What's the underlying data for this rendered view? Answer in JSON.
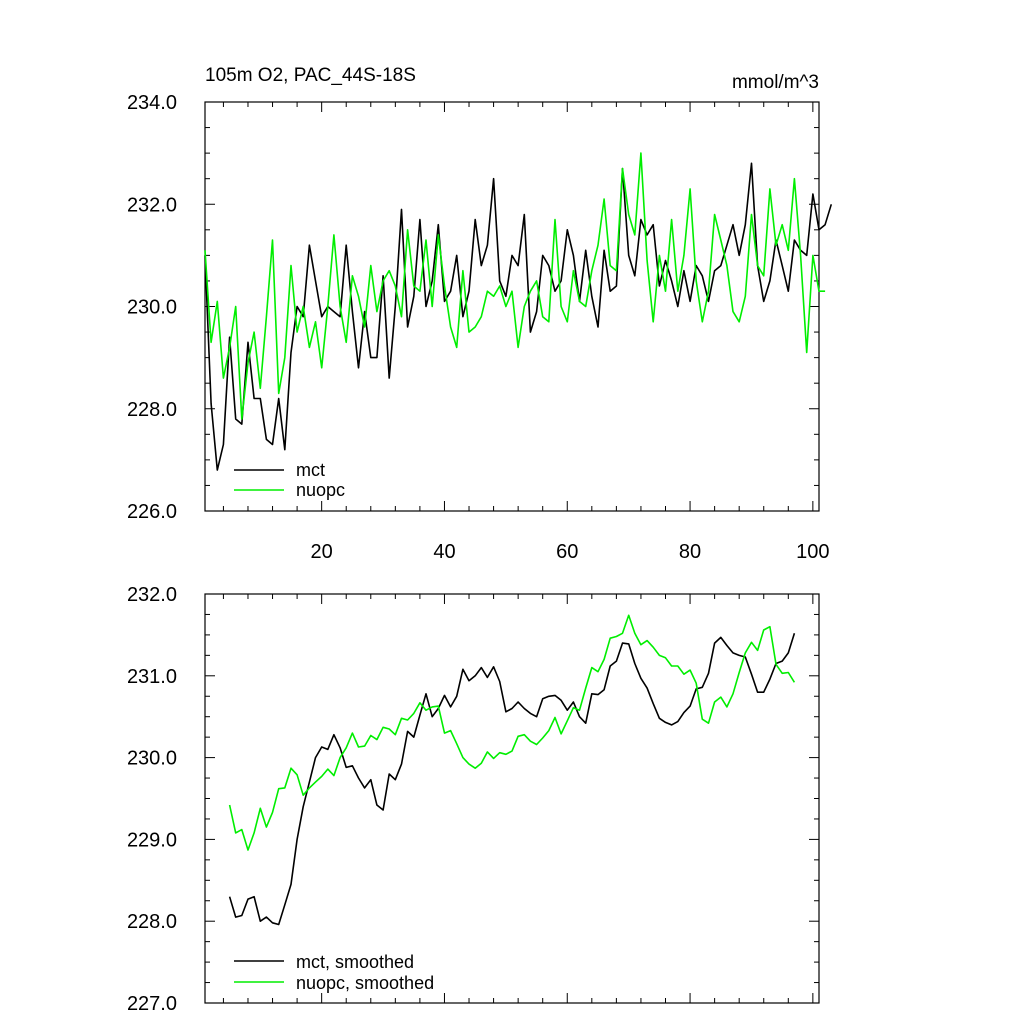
{
  "chart_data": [
    {
      "type": "line",
      "title": "105m O2, PAC_44S-18S",
      "units": "mmol/m^3",
      "xlim": [
        1,
        101
      ],
      "ylim": [
        226,
        234
      ],
      "yticks": [
        "226.0",
        "228.0",
        "230.0",
        "232.0",
        "234.0"
      ],
      "xticks": [
        "20",
        "40",
        "60",
        "80",
        "100"
      ],
      "legend_position": "bottom-left",
      "series": [
        {
          "name": "mct",
          "color": "#000000",
          "values": [
            231.0,
            228.1,
            226.8,
            227.3,
            229.4,
            227.8,
            227.7,
            229.3,
            228.2,
            228.2,
            227.4,
            227.3,
            228.2,
            227.2,
            229.1,
            230.0,
            229.8,
            231.2,
            230.5,
            229.8,
            230.0,
            229.9,
            229.8,
            231.2,
            229.9,
            228.8,
            229.9,
            229.0,
            229.0,
            230.6,
            228.6,
            230.0,
            231.9,
            229.6,
            230.2,
            231.7,
            230.0,
            230.5,
            231.6,
            230.1,
            230.3,
            231.0,
            229.8,
            230.3,
            231.7,
            230.8,
            231.2,
            232.5,
            230.5,
            230.2,
            231.0,
            230.8,
            231.8,
            229.5,
            229.9,
            231.0,
            230.8,
            230.3,
            230.5,
            231.5,
            231.0,
            230.1,
            231.1,
            230.2,
            229.6,
            231.1,
            230.3,
            230.4,
            232.7,
            231.0,
            230.6,
            231.7,
            231.4,
            231.6,
            230.4,
            230.9,
            230.5,
            230.0,
            230.7,
            230.1,
            230.8,
            230.6,
            230.1,
            230.7,
            230.8,
            231.2,
            231.6,
            231.0,
            231.6,
            232.8,
            230.8,
            230.1,
            230.5,
            231.3,
            230.8,
            230.3,
            231.3,
            231.1,
            231.0,
            232.2,
            231.5,
            231.6,
            232.0
          ]
        },
        {
          "name": "nuopc",
          "color": "#00ee00",
          "values": [
            231.1,
            229.3,
            230.1,
            228.6,
            229.2,
            230.0,
            227.8,
            228.9,
            229.5,
            228.4,
            229.8,
            231.3,
            228.3,
            229.0,
            230.8,
            229.5,
            230.0,
            229.2,
            229.7,
            228.8,
            230.0,
            231.4,
            230.0,
            229.3,
            230.6,
            230.2,
            229.6,
            230.8,
            229.9,
            230.5,
            230.7,
            230.4,
            229.8,
            231.5,
            230.4,
            230.3,
            231.3,
            230.0,
            231.4,
            230.4,
            229.6,
            229.2,
            230.7,
            229.5,
            229.6,
            229.8,
            230.3,
            230.2,
            230.4,
            230.0,
            230.3,
            229.2,
            230.0,
            230.3,
            230.5,
            229.8,
            229.7,
            231.7,
            230.0,
            229.7,
            230.7,
            230.1,
            230.0,
            230.7,
            231.2,
            232.1,
            230.8,
            230.7,
            232.7,
            231.8,
            231.4,
            233.0,
            230.9,
            229.7,
            231.0,
            230.3,
            231.7,
            230.3,
            231.0,
            232.3,
            230.5,
            229.7,
            230.3,
            231.8,
            231.3,
            230.8,
            229.9,
            229.7,
            230.2,
            231.8,
            230.8,
            230.6,
            232.3,
            231.2,
            231.6,
            231.1,
            232.5,
            231.0,
            229.1,
            231.0,
            230.3,
            230.3
          ]
        }
      ]
    },
    {
      "type": "line",
      "title": "",
      "xlim": [
        1,
        101
      ],
      "ylim": [
        227,
        232
      ],
      "yticks": [
        "227.0",
        "228.0",
        "229.0",
        "230.0",
        "231.0",
        "232.0"
      ],
      "legend_position": "bottom-left",
      "series": [
        {
          "name": "mct, smoothed",
          "color": "#000000",
          "start_x": 5,
          "values": [
            228.3,
            228.05,
            228.07,
            228.27,
            228.3,
            228.0,
            228.05,
            227.98,
            227.96,
            228.2,
            228.45,
            229.0,
            229.4,
            229.7,
            230.0,
            230.13,
            230.1,
            230.28,
            230.12,
            229.88,
            229.9,
            229.75,
            229.63,
            229.73,
            229.42,
            229.36,
            229.8,
            229.73,
            229.92,
            230.32,
            230.25,
            230.52,
            230.78,
            230.5,
            230.6,
            230.76,
            230.62,
            230.75,
            231.08,
            230.94,
            231.0,
            231.1,
            230.98,
            231.11,
            230.93,
            230.56,
            230.6,
            230.68,
            230.6,
            230.54,
            230.5,
            230.72,
            230.75,
            230.76,
            230.7,
            230.58,
            230.68,
            230.5,
            230.42,
            230.78,
            230.77,
            230.83,
            231.12,
            231.18,
            231.4,
            231.39,
            231.15,
            230.97,
            230.85,
            230.66,
            230.48,
            230.43,
            230.4,
            230.44,
            230.55,
            230.63,
            230.84,
            230.86,
            231.03,
            231.4,
            231.47,
            231.37,
            231.28,
            231.25,
            231.23,
            231.02,
            230.8,
            230.8,
            230.96,
            231.15,
            231.18,
            231.28,
            231.52
          ]
        },
        {
          "name": "nuopc, smoothed",
          "color": "#00ee00",
          "start_x": 5,
          "values": [
            229.42,
            229.08,
            229.12,
            228.87,
            229.08,
            229.38,
            229.15,
            229.33,
            229.62,
            229.63,
            229.87,
            229.79,
            229.54,
            229.63,
            229.7,
            229.77,
            229.86,
            229.78,
            230.0,
            230.12,
            230.3,
            230.13,
            230.14,
            230.27,
            230.22,
            230.37,
            230.35,
            230.28,
            230.48,
            230.46,
            230.54,
            230.67,
            230.58,
            230.62,
            230.63,
            230.3,
            230.33,
            230.17,
            230.0,
            229.92,
            229.87,
            229.93,
            230.07,
            229.99,
            230.06,
            230.04,
            230.08,
            230.26,
            230.28,
            230.2,
            230.16,
            230.24,
            230.33,
            230.49,
            230.29,
            230.45,
            230.61,
            230.58,
            230.85,
            231.1,
            231.05,
            231.2,
            231.46,
            231.48,
            231.52,
            231.74,
            231.52,
            231.38,
            231.43,
            231.35,
            231.25,
            231.22,
            231.12,
            231.12,
            231.02,
            231.07,
            230.91,
            230.47,
            230.42,
            230.68,
            230.74,
            230.62,
            230.78,
            231.04,
            231.28,
            231.41,
            231.31,
            231.56,
            231.6,
            231.14,
            231.03,
            231.04,
            230.92
          ]
        }
      ]
    }
  ]
}
